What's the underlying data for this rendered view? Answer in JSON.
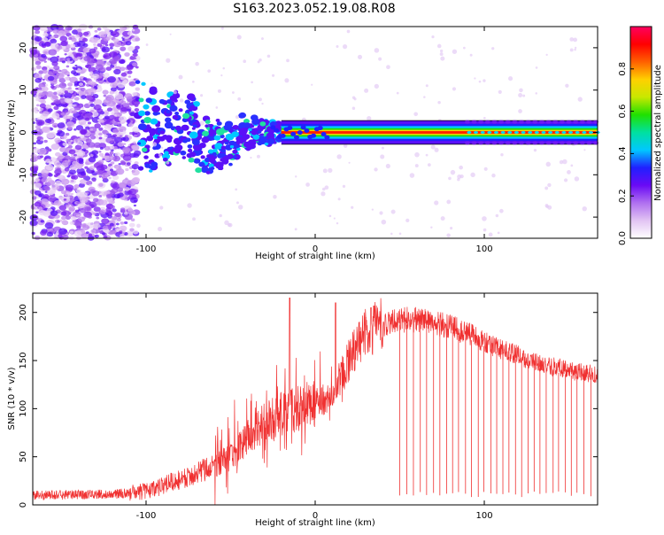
{
  "title": "S163.2023.052.19.08.R08",
  "chart_data": [
    {
      "type": "heatmap",
      "xlabel": "Height of straight line (km)",
      "ylabel": "Frequency (Hz)",
      "xlim": [
        -167,
        167
      ],
      "ylim": [
        -25,
        25
      ],
      "xticks": [
        -100,
        0,
        100
      ],
      "yticks": [
        -20,
        -10,
        0,
        10,
        20
      ],
      "colorbar": {
        "label": "Normalized spectral amplitude",
        "range": [
          0,
          1
        ],
        "ticks": [
          0.0,
          0.2,
          0.4,
          0.6,
          0.8
        ],
        "colors": [
          "#ffffff",
          "#e2c4f3",
          "#b070f0",
          "#6a0af5",
          "#2020ff",
          "#00c8ff",
          "#00e0a0",
          "#20e000",
          "#c8e800",
          "#ffd000",
          "#ff6000",
          "#ff0000",
          "#ff0060"
        ]
      },
      "features": {
        "carrier_band": {
          "x": [
            -20,
            167
          ],
          "y": 0,
          "amplitude": 0.85
        },
        "scattered_noise_zone": {
          "x": [
            -167,
            -105
          ],
          "amplitude": 0.3
        },
        "transition_zone": {
          "x": [
            -105,
            -20
          ],
          "amplitude": 0.45
        },
        "carrier_ripple_zone": {
          "x": [
            90,
            167
          ],
          "amplitude": 0.6
        }
      }
    },
    {
      "type": "line",
      "xlabel": "Height of straight line (km)",
      "ylabel": "SNR (10 * v/v)",
      "xlim": [
        -167,
        167
      ],
      "ylim": [
        0,
        220
      ],
      "xticks": [
        -100,
        0,
        100
      ],
      "yticks": [
        0,
        50,
        100,
        150,
        200
      ],
      "color": "#f03030",
      "envelope": {
        "x": [
          -167,
          -120,
          -100,
          -90,
          -80,
          -70,
          -60,
          -50,
          -40,
          -30,
          -20,
          -10,
          0,
          10,
          20,
          30,
          40,
          50,
          60,
          70,
          80,
          90,
          100,
          110,
          120,
          130,
          140,
          150,
          160,
          167
        ],
        "y": [
          10,
          11,
          14,
          20,
          27,
          33,
          40,
          50,
          70,
          85,
          95,
          100,
          105,
          115,
          150,
          180,
          188,
          192,
          193,
          190,
          185,
          178,
          170,
          162,
          155,
          148,
          144,
          140,
          137,
          135
        ]
      },
      "peaks": [
        {
          "x": -15,
          "y": 215
        },
        {
          "x": 12,
          "y": 210
        },
        {
          "x": 33,
          "y": 205
        }
      ],
      "dropouts": {
        "x_start": 50,
        "x_end": 167,
        "min_y": 8
      }
    }
  ]
}
